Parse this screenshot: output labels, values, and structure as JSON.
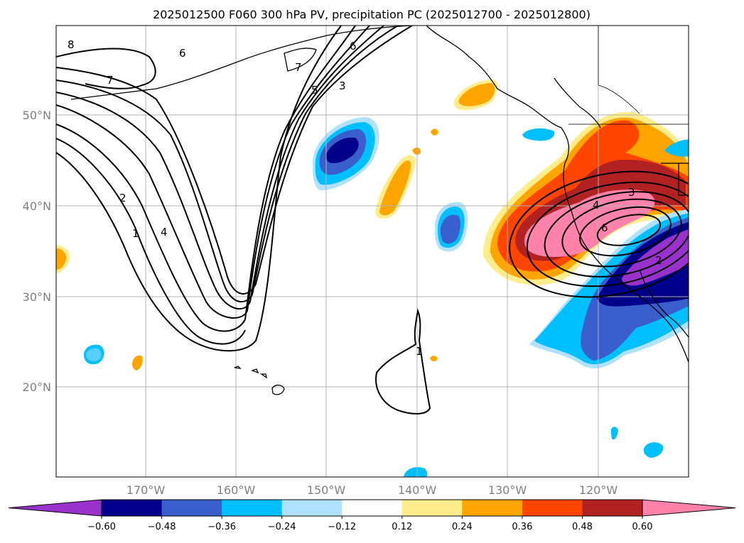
{
  "title": "2025012500 F060 300 hPa PV, precipitation PC (2025012700 - 2025012800)",
  "lat_labels": [
    "50°N",
    "40°N",
    "30°N",
    "20°N"
  ],
  "lon_labels": [
    "170°W",
    "160°W",
    "150°W",
    "140°W",
    "130°W",
    "120°W"
  ],
  "colorbar": {
    "ticks": [
      "−0.60",
      "−0.48",
      "−0.36",
      "−0.24",
      "−0.12",
      "0.12",
      "0.24",
      "0.36",
      "0.48",
      "0.60"
    ],
    "colors": [
      "#9932cc",
      "#00008b",
      "#3a5fcd",
      "#00bfff",
      "#b0e2ff",
      "#ffffff",
      "#ffec8b",
      "#ffa500",
      "#ff4500",
      "#b22222",
      "#ff82ab"
    ]
  },
  "contour_labels": [
    "8",
    "6",
    "7",
    "7",
    "6",
    "5",
    "3",
    "2",
    "1",
    "4",
    "1",
    "3",
    "4",
    "6",
    "2"
  ],
  "colors": {
    "grid": "#b0b0b0",
    "axis_label": "#808080",
    "contour": "#000000"
  }
}
